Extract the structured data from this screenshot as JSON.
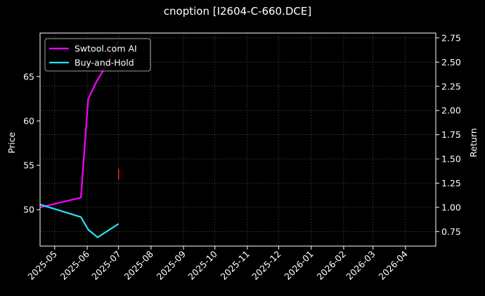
{
  "chart_data": {
    "type": "line",
    "title": "cnoption [I2604-C-660.DCE]",
    "ylabel": "Price",
    "y2label": "Return",
    "background": "#000000",
    "grid": true,
    "legend_position": "top-left",
    "xlim": [
      "2025-04-17",
      "2026-04-30"
    ],
    "ylim": [
      45.9,
      69.9
    ],
    "y2lim": [
      0.6,
      2.8
    ],
    "x_ticks": [
      "2025-05",
      "2025-06",
      "2025-07",
      "2025-08",
      "2025-09",
      "2025-10",
      "2025-11",
      "2025-12",
      "2026-01",
      "2026-02",
      "2026-03",
      "2026-04"
    ],
    "y_ticks": [
      50,
      55,
      60,
      65
    ],
    "y2_ticks": [
      "0.75",
      "1.00",
      "1.25",
      "1.50",
      "1.75",
      "2.00",
      "2.25",
      "2.50",
      "2.75"
    ],
    "series": [
      {
        "name": "Swtool.com AI",
        "axis": "right",
        "color": "#ff00ff",
        "x": [
          "2025-04-17",
          "2025-05-26",
          "2025-06-02",
          "2025-06-10",
          "2025-06-20",
          "2025-07-01"
        ],
        "values": [
          1.0,
          1.1,
          2.12,
          2.3,
          2.48,
          2.72
        ]
      },
      {
        "name": "Buy-and-Hold",
        "axis": "right",
        "color": "#22e5f0",
        "x": [
          "2025-04-17",
          "2025-05-26",
          "2025-06-02",
          "2025-06-11",
          "2025-07-01"
        ],
        "values": [
          1.03,
          0.9,
          0.77,
          0.69,
          0.83
        ]
      }
    ],
    "markers": [
      {
        "x": "2025-07-01",
        "y_low": 53.4,
        "y_high": 54.6,
        "color": "#ff2222",
        "axis": "left"
      }
    ]
  }
}
